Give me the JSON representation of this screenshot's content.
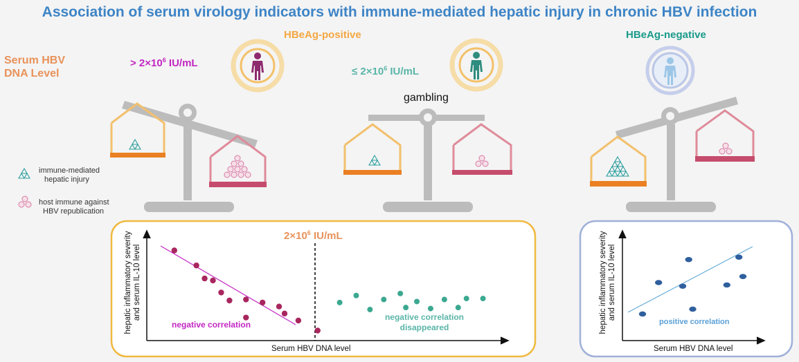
{
  "title": "Association of serum virology indicators with immune-mediated hepatic injury in chronic HBV infection",
  "groups": {
    "positive": "HBeAg-positive",
    "negative": "HBeAg-negative"
  },
  "side_label": "Serum HBV DNA Level",
  "dna_levels": {
    "high_prefix": "> 2×10",
    "high_exp": "6",
    "high_unit": " IU/mL",
    "low_prefix": "≤ 2×10",
    "low_exp": "6",
    "low_unit": " IU/mL",
    "threshold_prefix": "2×10",
    "threshold_exp": "6",
    "threshold_unit": " IU/mL"
  },
  "gambling": "gambling",
  "legend": {
    "injury_line1": "immune-mediated",
    "injury_line2": "hepatic injury",
    "host_line1": "host immune  against",
    "host_line2": "HBV republication"
  },
  "plots": {
    "left": {
      "ylabel_line1": "hepatic inflammatory severity",
      "ylabel_line2": "and serum IL-10 level",
      "xlabel": "Serum HBV DNA level",
      "neg_corr": "negative correlation",
      "disappeared_line1": "negative correlation",
      "disappeared_line2": "disappeared"
    },
    "right": {
      "ylabel_line1": "hepatic inflammatory severity",
      "ylabel_line2": "and serum IL-10 level",
      "xlabel": "Serum HBV DNA level",
      "pos_corr": "positive correlation"
    }
  },
  "colors": {
    "title": "#3d84c6",
    "orange": "#f4a742",
    "teal": "#199a8a",
    "magenta": "#c226c2",
    "point_purple": "#a8275e",
    "point_teal": "#3ba890",
    "point_blue": "#2f5f9e",
    "pink": "#d76b86",
    "scale_grey": "#bcbcbc"
  },
  "chart_data": [
    {
      "type": "scatter",
      "series": [
        {
          "name": "",
          "x": [
            1.0,
            1.8,
            2.4,
            2.7,
            2.1,
            3.0,
            3.6,
            3.6,
            4.2,
            5.0,
            4.8,
            5.5,
            6.2
          ],
          "y": [
            9.0,
            7.5,
            6.0,
            4.8,
            6.2,
            4.0,
            4.1,
            2.3,
            3.8,
            2.7,
            3.4,
            2.0,
            1.0
          ]
        },
        {
          "name": "",
          "x": [
            7.0,
            7.6,
            8.1,
            8.6,
            9.2,
            9.4,
            9.8,
            10.3,
            10.8,
            11.3,
            11.6,
            12.2
          ],
          "y": [
            3.8,
            4.5,
            3.1,
            4.1,
            4.7,
            3.3,
            3.9,
            3.2,
            4.1,
            3.3,
            4.2,
            4.2
          ]
        }
      ],
      "xlabel": "Serum HBV DNA level",
      "ylabel": "hepatic inflammatory severity and serum IL-10 level"
    },
    {
      "type": "scatter",
      "series": [
        {
          "name": "",
          "x": [
            1.0,
            1.8,
            3.0,
            3.3,
            3.5,
            5.2,
            5.8,
            6.0
          ],
          "y": [
            2.2,
            4.8,
            4.5,
            6.7,
            2.6,
            4.6,
            6.9,
            5.3
          ]
        }
      ],
      "xlabel": "Serum HBV DNA level",
      "ylabel": "hepatic inflammatory severity and serum IL-10 level"
    }
  ]
}
